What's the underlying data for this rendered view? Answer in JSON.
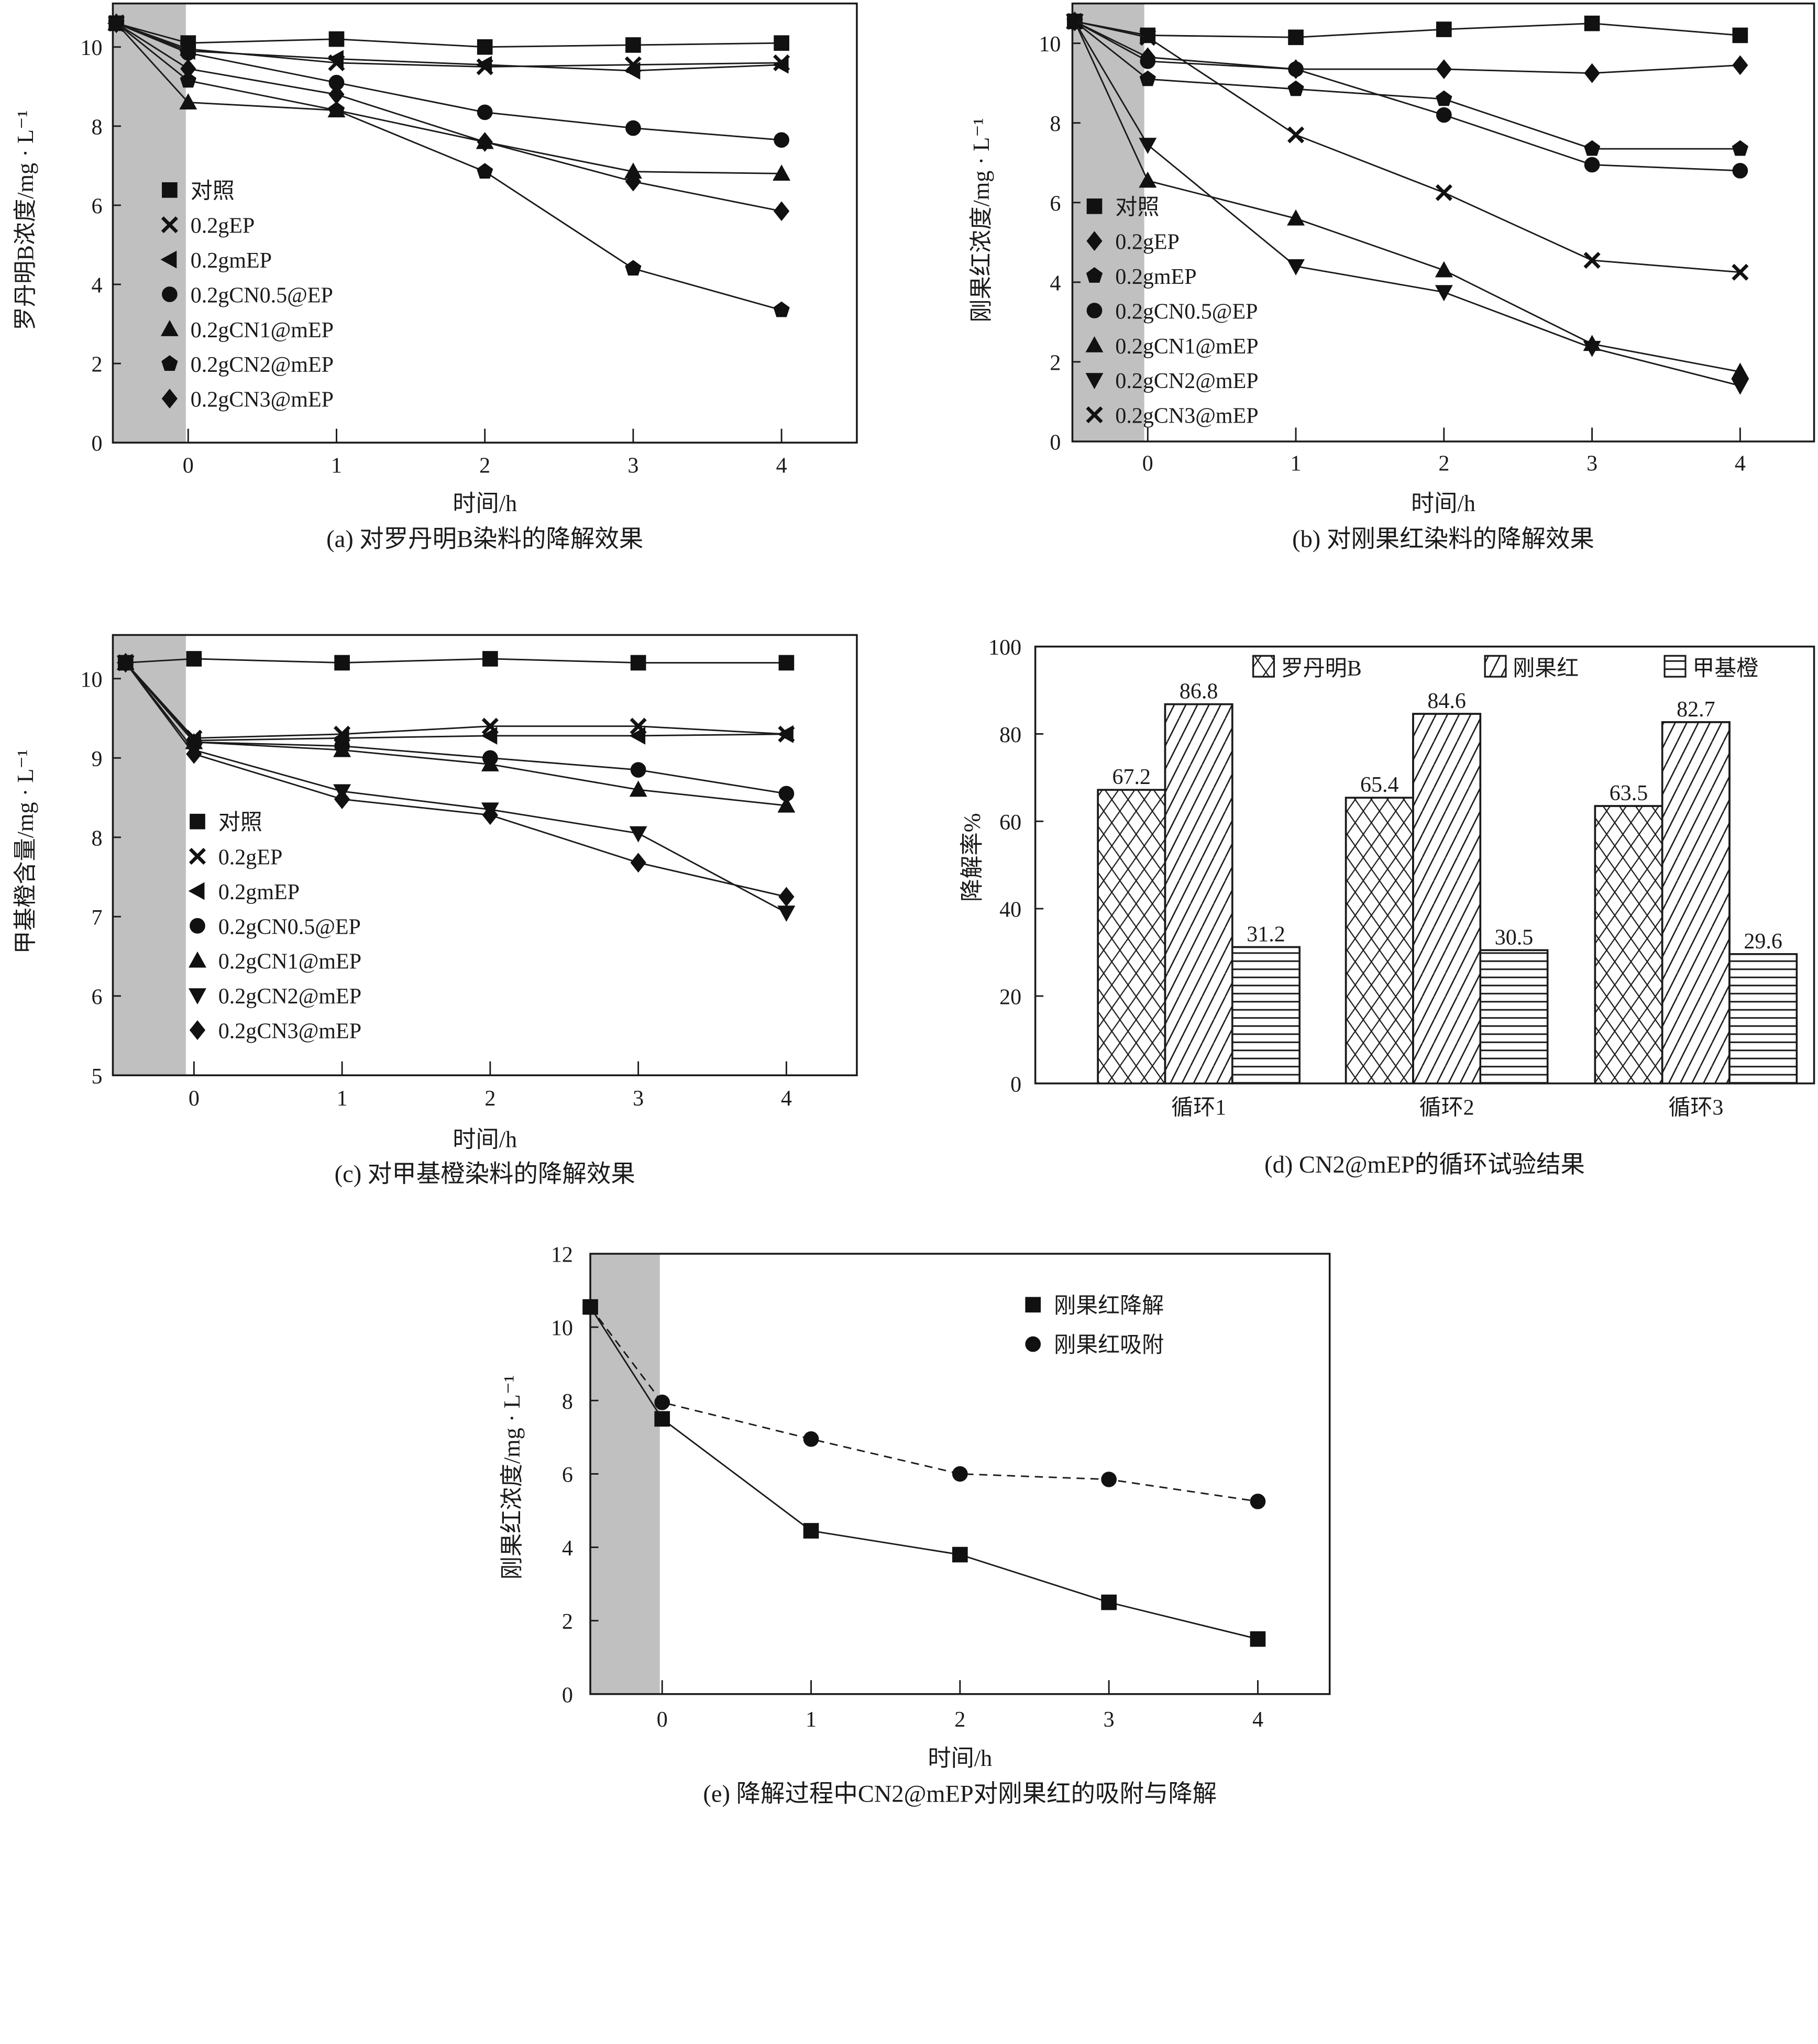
{
  "chart_data": [
    {
      "id": "a",
      "type": "line",
      "caption": "(a) 对罗丹明B染料的降解效果",
      "xlabel": "时间/h",
      "ylabel": "罗丹明B浓度/mg · L⁻¹",
      "x_ticks": [
        "0",
        "1",
        "2",
        "3",
        "4"
      ],
      "y_ticks": [
        "0",
        "2",
        "4",
        "6",
        "8",
        "10"
      ],
      "ylim": [
        0,
        11.1
      ],
      "xlim": [
        -0.5,
        4.5
      ],
      "shaded_region": "adsorption (before t=0)",
      "legend_position": "middle-left",
      "x": [
        -0.5,
        0,
        1,
        2,
        3,
        4
      ],
      "series": [
        {
          "name": "对照",
          "marker": "square",
          "values": [
            10.6,
            10.1,
            10.2,
            10.0,
            10.05,
            10.1
          ]
        },
        {
          "name": "0.2gEP",
          "marker": "x",
          "values": [
            10.6,
            9.95,
            9.6,
            9.5,
            9.55,
            9.6
          ]
        },
        {
          "name": "0.2gmEP",
          "marker": "triangle-left",
          "values": [
            10.6,
            9.9,
            9.7,
            9.55,
            9.4,
            9.55
          ]
        },
        {
          "name": "0.2gCN0.5@EP",
          "marker": "circle",
          "values": [
            10.6,
            9.85,
            9.1,
            8.35,
            7.95,
            7.65
          ]
        },
        {
          "name": "0.2gCN1@mEP",
          "marker": "triangle-up",
          "values": [
            10.6,
            8.6,
            8.4,
            7.6,
            6.85,
            6.8
          ]
        },
        {
          "name": "0.2gCN2@mEP",
          "marker": "pentagon",
          "values": [
            10.6,
            9.15,
            8.4,
            6.85,
            4.4,
            3.35
          ]
        },
        {
          "name": "0.2gCN3@mEP",
          "marker": "diamond",
          "values": [
            10.6,
            9.45,
            8.8,
            7.6,
            6.6,
            5.85
          ]
        }
      ]
    },
    {
      "id": "b",
      "type": "line",
      "caption": "(b) 对刚果红染料的降解效果",
      "xlabel": "时间/h",
      "ylabel": "刚果红浓度/mg · L⁻¹",
      "x_ticks": [
        "0",
        "1",
        "2",
        "3",
        "4"
      ],
      "y_ticks": [
        "0",
        "2",
        "4",
        "6",
        "8",
        "10"
      ],
      "ylim": [
        0,
        11.0
      ],
      "xlim": [
        -0.5,
        4.5
      ],
      "shaded_region": "adsorption (before t=0)",
      "legend_position": "bottom-left",
      "x": [
        -0.5,
        0,
        1,
        2,
        3,
        4
      ],
      "series": [
        {
          "name": "对照",
          "marker": "square",
          "values": [
            10.55,
            10.2,
            10.15,
            10.35,
            10.5,
            10.2
          ]
        },
        {
          "name": "0.2gEP",
          "marker": "diamond",
          "values": [
            10.55,
            9.65,
            9.35,
            9.35,
            9.25,
            9.45
          ]
        },
        {
          "name": "0.2gmEP",
          "marker": "pentagon",
          "values": [
            10.55,
            9.1,
            8.85,
            8.6,
            7.35,
            7.35
          ]
        },
        {
          "name": "0.2gCN0.5@EP",
          "marker": "circle",
          "values": [
            10.55,
            9.55,
            9.35,
            8.2,
            6.95,
            6.8
          ]
        },
        {
          "name": "0.2gCN1@mEP",
          "marker": "triangle-up",
          "values": [
            10.55,
            6.55,
            5.6,
            4.3,
            2.45,
            1.75
          ]
        },
        {
          "name": "0.2gCN2@mEP",
          "marker": "triangle-down",
          "values": [
            10.55,
            7.45,
            4.4,
            3.75,
            2.35,
            1.4
          ]
        },
        {
          "name": "0.2gCN3@mEP",
          "marker": "x",
          "values": [
            10.55,
            10.15,
            7.7,
            6.25,
            4.55,
            4.25
          ]
        }
      ]
    },
    {
      "id": "c",
      "type": "line",
      "caption": "(c) 对甲基橙染料的降解效果",
      "xlabel": "时间/h",
      "ylabel": "甲基橙含量/mg · L⁻¹",
      "x_ticks": [
        "0",
        "1",
        "2",
        "3",
        "4"
      ],
      "y_ticks": [
        "5",
        "6",
        "7",
        "8",
        "9",
        "10"
      ],
      "ylim": [
        5,
        10.55
      ],
      "xlim": [
        -0.5,
        4.5
      ],
      "shaded_region": "adsorption (before t=0)",
      "legend_position": "bottom-left",
      "x": [
        -0.5,
        0,
        1,
        2,
        3,
        4
      ],
      "series": [
        {
          "name": "对照",
          "marker": "square",
          "values": [
            10.2,
            10.25,
            10.2,
            10.25,
            10.2,
            10.2
          ]
        },
        {
          "name": "0.2gEP",
          "marker": "x",
          "values": [
            10.2,
            9.25,
            9.3,
            9.4,
            9.4,
            9.3
          ]
        },
        {
          "name": "0.2gmEP",
          "marker": "triangle-left",
          "values": [
            10.2,
            9.22,
            9.25,
            9.28,
            9.28,
            9.3
          ]
        },
        {
          "name": "0.2gCN0.5@EP",
          "marker": "circle",
          "values": [
            10.2,
            9.2,
            9.15,
            9.0,
            8.85,
            8.55
          ]
        },
        {
          "name": "0.2gCN1@mEP",
          "marker": "triangle-up",
          "values": [
            10.2,
            9.2,
            9.1,
            8.92,
            8.6,
            8.4
          ]
        },
        {
          "name": "0.2gCN2@mEP",
          "marker": "triangle-down",
          "values": [
            10.2,
            9.1,
            8.58,
            8.35,
            8.05,
            7.05
          ]
        },
        {
          "name": "0.2gCN3@mEP",
          "marker": "diamond",
          "values": [
            10.2,
            9.05,
            8.48,
            8.28,
            7.68,
            7.25
          ]
        }
      ]
    },
    {
      "id": "d",
      "type": "bar",
      "caption": "(d) CN2@mEP的循环试验结果",
      "xlabel": "",
      "ylabel": "降解率%",
      "categories": [
        "循环1",
        "循环2",
        "循环3"
      ],
      "y_ticks": [
        "0",
        "20",
        "40",
        "60",
        "80",
        "100"
      ],
      "ylim": [
        0,
        100
      ],
      "legend_position": "top",
      "series": [
        {
          "name": "罗丹明B",
          "pattern": "crosshatch",
          "values": [
            67.2,
            65.4,
            63.5
          ],
          "labels": [
            "67.2",
            "65.4",
            "63.5"
          ]
        },
        {
          "name": "刚果红",
          "pattern": "diagonal",
          "values": [
            86.8,
            84.6,
            82.7
          ],
          "labels": [
            "86.8",
            "84.6",
            "82.7"
          ]
        },
        {
          "name": "甲基橙",
          "pattern": "horizontal",
          "values": [
            31.2,
            30.5,
            29.6
          ],
          "labels": [
            "31.2",
            "30.5",
            "29.6"
          ]
        }
      ]
    },
    {
      "id": "e",
      "type": "line",
      "caption": "(e) 降解过程中CN2@mEP对刚果红的吸附与降解",
      "xlabel": "时间/h",
      "ylabel": "刚果红浓度/mg · L⁻¹",
      "x_ticks": [
        "0",
        "1",
        "2",
        "3",
        "4"
      ],
      "y_ticks": [
        "0",
        "2",
        "4",
        "6",
        "8",
        "10",
        "12"
      ],
      "ylim": [
        0,
        12
      ],
      "xlim": [
        -0.5,
        4.5
      ],
      "shaded_region": "adsorption (before t=0)",
      "legend_position": "top-right",
      "x": [
        -0.5,
        0,
        1,
        2,
        3,
        4
      ],
      "series": [
        {
          "name": "刚果红降解",
          "marker": "square",
          "style": "solid",
          "values": [
            10.55,
            7.5,
            4.45,
            3.8,
            2.5,
            1.5
          ]
        },
        {
          "name": "刚果红吸附",
          "marker": "circle",
          "style": "dashed",
          "values": [
            10.55,
            7.95,
            6.95,
            6.0,
            5.85,
            5.25
          ]
        }
      ]
    }
  ]
}
